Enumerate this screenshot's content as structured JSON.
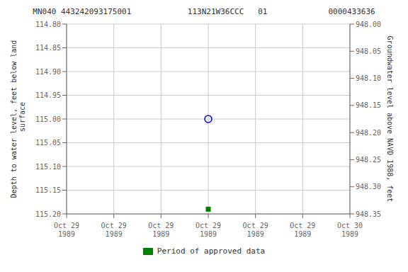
{
  "chart_data": {
    "type": "scatter",
    "title": "MN040 443242093175001            113N21W36CCC   01             0000433636",
    "y_label": "Depth to water level, feet below land\n surface",
    "y2_label": "Groundwater level above NAVD 1988, feet",
    "categories": [
      "Oct 29\n1989",
      "Oct 29\n1989",
      "Oct 29\n1989",
      "Oct 29\n1989",
      "Oct 29\n1989",
      "Oct 29\n1989",
      "Oct 30\n1989"
    ],
    "series": [
      {
        "color": "blue",
        "marker": "circle_open",
        "values": [
          null,
          null,
          null,
          115.0,
          null,
          null,
          null
        ]
      },
      {
        "name": "Period of approved data",
        "color": "green",
        "marker": "square",
        "values": [
          null,
          null,
          null,
          115.19,
          null,
          null,
          null
        ]
      }
    ],
    "ylim": [
      115.2,
      114.8
    ],
    "yticks": [
      {
        "value": 114.8,
        "label": "114.80"
      },
      114.85,
      {
        "value": 114.9,
        "label": "114.90"
      },
      114.95,
      {
        "value": 115.0,
        "label": "115.00"
      },
      115.05,
      {
        "value": 115.1,
        "label": "115.10"
      },
      115.15,
      {
        "value": 115.2,
        "label": "115.20"
      }
    ],
    "y2lim": [
      948.35,
      948.0
    ],
    "y2ticks": [
      948.35,
      {
        "value": 948.3,
        "label": "948.30"
      },
      948.25,
      {
        "value": 948.2,
        "label": "948.20"
      },
      948.15,
      {
        "value": 948.1,
        "label": "948.10"
      },
      948.05,
      {
        "value": 948.0,
        "label": "948.00"
      }
    ],
    "grid": true,
    "legend": "bottom"
  }
}
